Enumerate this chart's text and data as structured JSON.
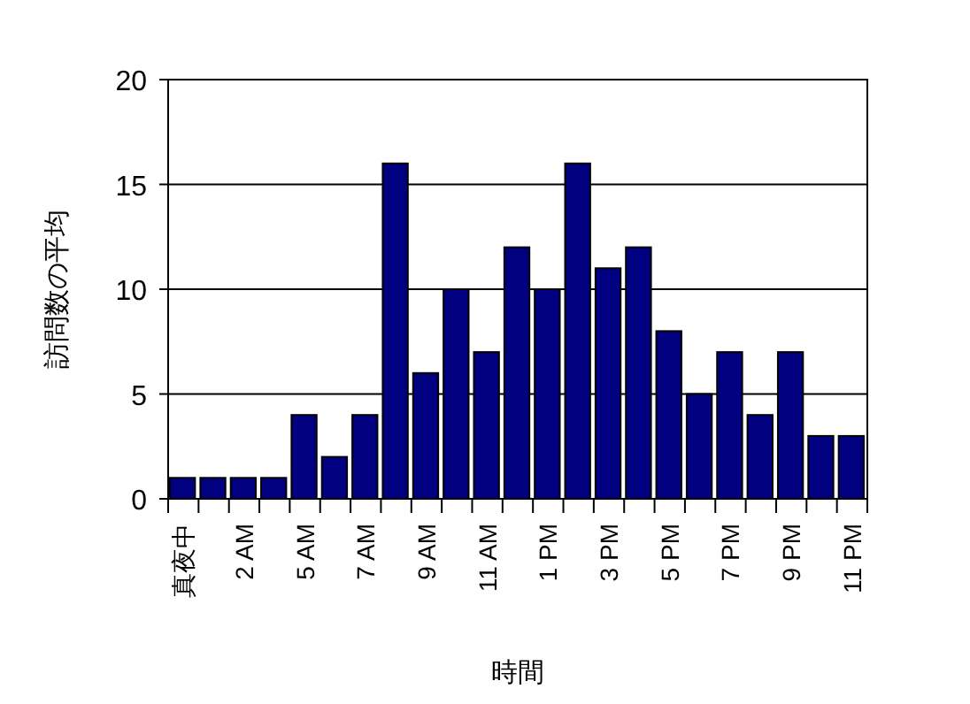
{
  "chart_data": {
    "type": "bar",
    "xlabel": "時間",
    "ylabel": "訪問数の平均",
    "categories": [
      "真夜中",
      null,
      "2 AM",
      null,
      "5 AM",
      null,
      "7 AM",
      null,
      "9 AM",
      null,
      "11 AM",
      null,
      "1 PM",
      null,
      "3 PM",
      null,
      "5 PM",
      null,
      "7 PM",
      null,
      "9 PM",
      null,
      "11 PM"
    ],
    "values": [
      1,
      1,
      1,
      1,
      4,
      2,
      4,
      16,
      6,
      10,
      7,
      12,
      10,
      16,
      11,
      12,
      8,
      5,
      7,
      4,
      7,
      3,
      3
    ],
    "color": "#000080",
    "ylim": [
      0,
      20
    ],
    "yticks": [
      0,
      5,
      10,
      15,
      20
    ],
    "grid": "y"
  }
}
